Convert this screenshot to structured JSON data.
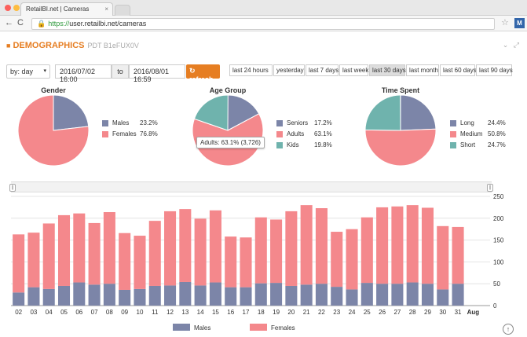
{
  "browser": {
    "tab_title": "RetailBI.net | Cameras",
    "url_scheme": "https://",
    "url_rest": "user.retailbi.net/cameras",
    "ext_label": "M"
  },
  "header": {
    "title": "DEMOGRAPHICS",
    "subtitle": "PDT B1eFUX0V"
  },
  "controls": {
    "interval": "by: day",
    "date_from": "2016/07/02 16:00",
    "to_label": "to",
    "date_to": "2016/08/01 16:59",
    "refresh_label": "↻ refresh",
    "presets": [
      "last 24 hours",
      "yesterday",
      "last 7 days",
      "last week",
      "last 30 days",
      "last month",
      "last 60 days",
      "last 90 days"
    ],
    "active_preset": "last 30 days"
  },
  "colors": {
    "blue": "#7c85a8",
    "pink": "#f4888c",
    "teal": "#6fb3ad",
    "accent": "#e67e22"
  },
  "pies": [
    {
      "title": "Gender",
      "slices": [
        {
          "label": "Males",
          "pct": "23.2%",
          "value": 23.2,
          "color": "#7c85a8"
        },
        {
          "label": "Females",
          "pct": "76.8%",
          "value": 76.8,
          "color": "#f4888c"
        }
      ]
    },
    {
      "title": "Age Group",
      "slices": [
        {
          "label": "Seniors",
          "pct": "17.2%",
          "value": 17.2,
          "color": "#7c85a8"
        },
        {
          "label": "Adults",
          "pct": "63.1%",
          "value": 63.1,
          "color": "#f4888c"
        },
        {
          "label": "Kids",
          "pct": "19.8%",
          "value": 19.8,
          "color": "#6fb3ad"
        }
      ],
      "tooltip": "Adults: 63.1% (3,726)"
    },
    {
      "title": "Time Spent",
      "slices": [
        {
          "label": "Long",
          "pct": "24.4%",
          "value": 24.4,
          "color": "#7c85a8"
        },
        {
          "label": "Medium",
          "pct": "50.8%",
          "value": 50.8,
          "color": "#f4888c"
        },
        {
          "label": "Short",
          "pct": "24.7%",
          "value": 24.7,
          "color": "#6fb3ad"
        }
      ]
    }
  ],
  "chart_data": {
    "type": "bar",
    "stacked": true,
    "categories": [
      "02",
      "03",
      "04",
      "05",
      "06",
      "07",
      "08",
      "09",
      "10",
      "11",
      "12",
      "13",
      "14",
      "15",
      "16",
      "17",
      "18",
      "19",
      "20",
      "21",
      "22",
      "23",
      "24",
      "25",
      "26",
      "27",
      "28",
      "29",
      "30",
      "31",
      "Aug"
    ],
    "series": [
      {
        "name": "Males",
        "color": "#7c85a8",
        "values": [
          30,
          42,
          38,
          45,
          53,
          48,
          50,
          36,
          38,
          45,
          46,
          54,
          46,
          53,
          42,
          42,
          51,
          52,
          45,
          48,
          50,
          43,
          37,
          52,
          50,
          50,
          53,
          50,
          37,
          50,
          0
        ]
      },
      {
        "name": "Females",
        "color": "#f4888c",
        "values": [
          133,
          125,
          150,
          162,
          158,
          141,
          164,
          130,
          122,
          149,
          170,
          167,
          153,
          165,
          116,
          114,
          151,
          145,
          171,
          182,
          173,
          126,
          138,
          150,
          175,
          177,
          177,
          174,
          145,
          130,
          0
        ]
      }
    ],
    "ylim": [
      0,
      250
    ],
    "yticks": [
      0,
      50,
      100,
      150,
      200,
      250
    ],
    "grid": true,
    "legend_position": "bottom"
  }
}
